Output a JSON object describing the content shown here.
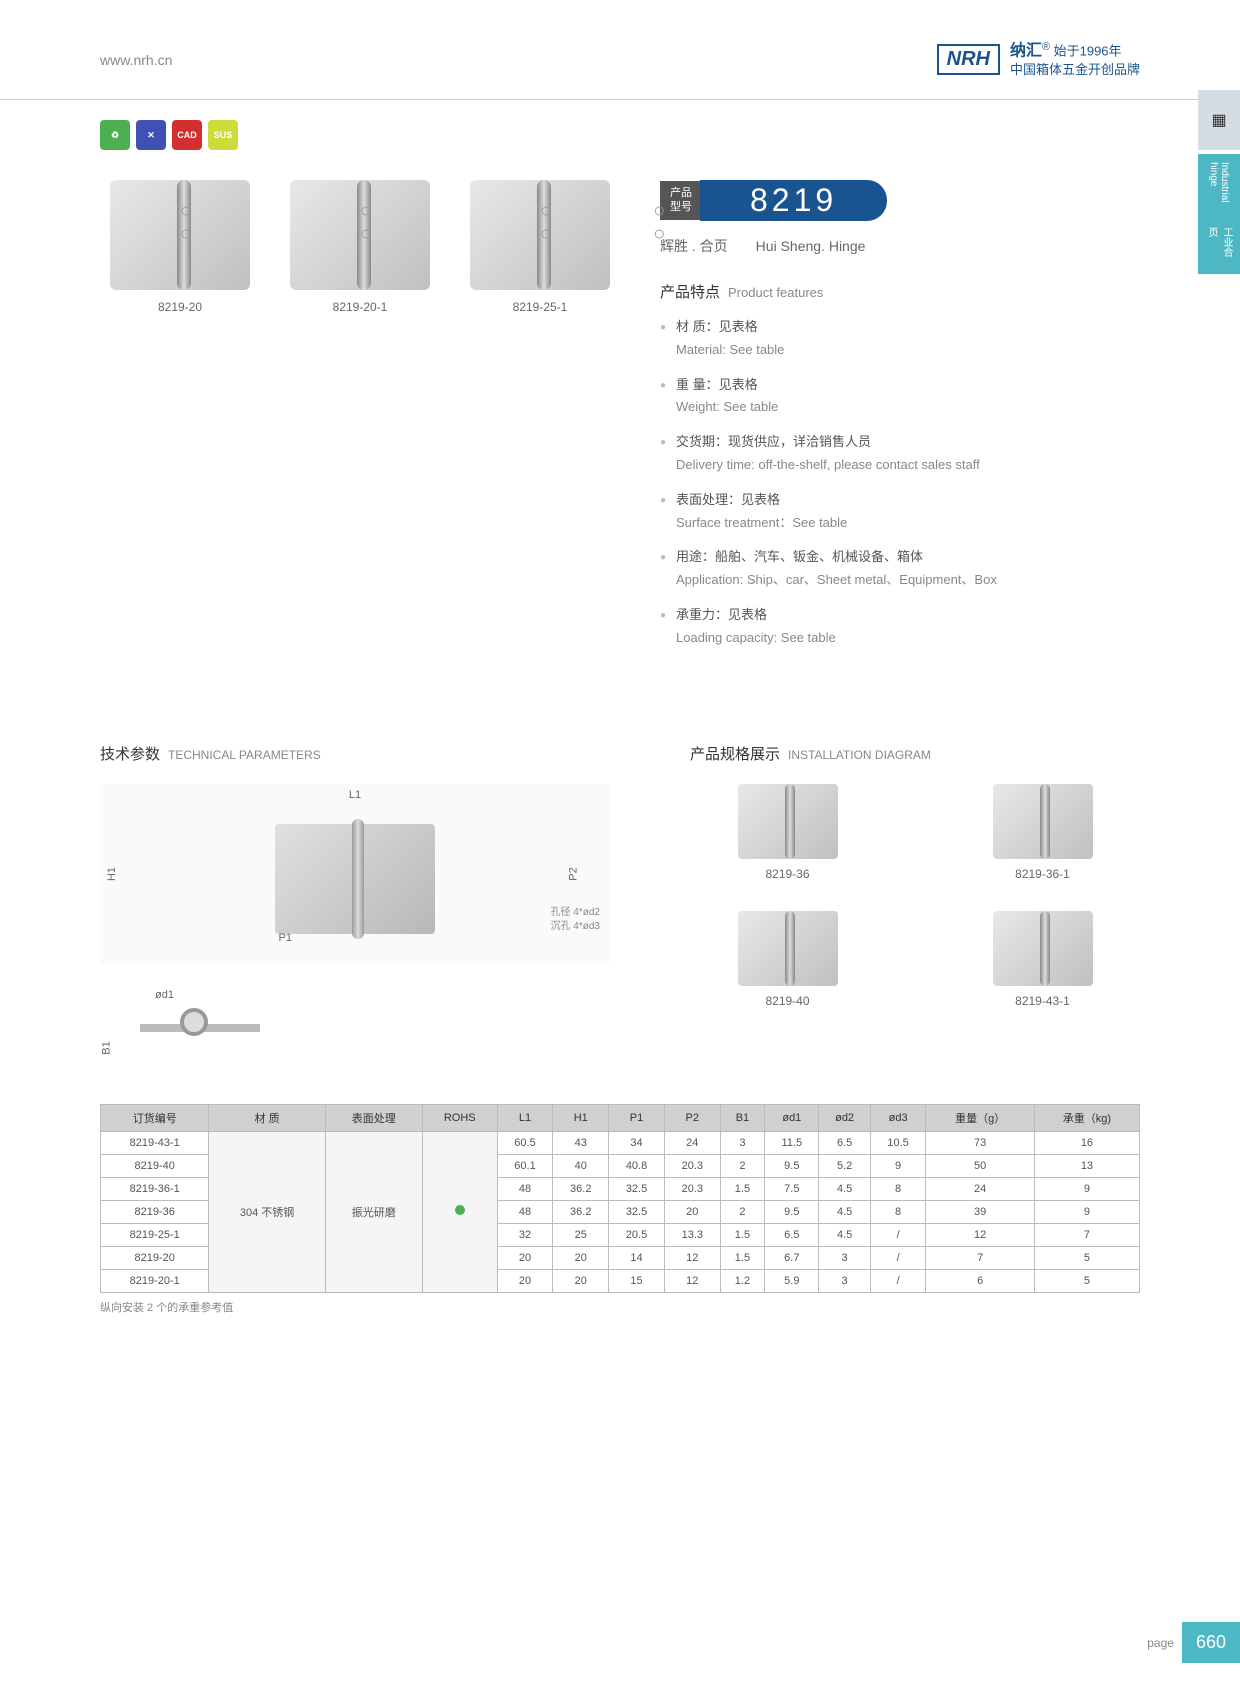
{
  "header": {
    "url": "www.nrh.cn",
    "logo": "NRH",
    "brand_cn": "纳汇",
    "since": "始于1996年",
    "tagline": "中国箱体五金开创品牌"
  },
  "side_tab": {
    "cn": "工业合页",
    "en": "Industrial hinge"
  },
  "badges": [
    "",
    "✕",
    "CAD",
    "SUS"
  ],
  "products": [
    {
      "label": "8219-20"
    },
    {
      "label": "8219-20-1"
    },
    {
      "label": "8219-25-1"
    }
  ],
  "model": {
    "tag1": "产品",
    "tag2": "型号",
    "number": "8219",
    "name_cn": "辉胜 . 合页",
    "name_en": "Hui Sheng. Hinge"
  },
  "features": {
    "title_cn": "产品特点",
    "title_en": "Product features",
    "items": [
      {
        "cn": "材 质：见表格",
        "en": "Material: See table"
      },
      {
        "cn": "重 量：见表格",
        "en": "Weight: See table"
      },
      {
        "cn": "交货期：现货供应，详洽销售人员",
        "en": "Delivery time: off-the-shelf, please contact sales staff"
      },
      {
        "cn": "表面处理：见表格",
        "en": "Surface treatment：See table"
      },
      {
        "cn": "用途：船舶、汽车、钣金、机械设备、箱体",
        "en": "Application: Ship、car、Sheet metal、Equipment、Box"
      },
      {
        "cn": "承重力：见表格",
        "en": "Loading capacity: See table"
      }
    ]
  },
  "tech": {
    "title_cn": "技术参数",
    "title_en": "TECHNICAL PARAMETERS",
    "dims": {
      "L1": "L1",
      "H1": "H1",
      "P1": "P1",
      "P2": "P2",
      "B1": "B1",
      "od1": "ød1",
      "note1": "孔径 4*ød2",
      "note2": "沉孔 4*ød3"
    }
  },
  "install": {
    "title_cn": "产品规格展示",
    "title_en": "INSTALLATION DIAGRAM",
    "items": [
      "8219-36",
      "8219-36-1",
      "8219-40",
      "8219-43-1"
    ]
  },
  "table": {
    "headers": [
      "订货编号",
      "材 质",
      "表面处理",
      "ROHS",
      "L1",
      "H1",
      "P1",
      "P2",
      "B1",
      "ød1",
      "ød2",
      "ød3",
      "重量（g）",
      "承重（kg)"
    ],
    "material": "304 不锈钢",
    "surface": "振光研磨",
    "rows": [
      [
        "8219-43-1",
        "60.5",
        "43",
        "34",
        "24",
        "3",
        "11.5",
        "6.5",
        "10.5",
        "73",
        "16"
      ],
      [
        "8219-40",
        "60.1",
        "40",
        "40.8",
        "20.3",
        "2",
        "9.5",
        "5.2",
        "9",
        "50",
        "13"
      ],
      [
        "8219-36-1",
        "48",
        "36.2",
        "32.5",
        "20.3",
        "1.5",
        "7.5",
        "4.5",
        "8",
        "24",
        "9"
      ],
      [
        "8219-36",
        "48",
        "36.2",
        "32.5",
        "20",
        "2",
        "9.5",
        "4.5",
        "8",
        "39",
        "9"
      ],
      [
        "8219-25-1",
        "32",
        "25",
        "20.5",
        "13.3",
        "1.5",
        "6.5",
        "4.5",
        "/",
        "12",
        "7"
      ],
      [
        "8219-20",
        "20",
        "20",
        "14",
        "12",
        "1.5",
        "6.7",
        "3",
        "/",
        "7",
        "5"
      ],
      [
        "8219-20-1",
        "20",
        "20",
        "15",
        "12",
        "1.2",
        "5.9",
        "3",
        "/",
        "6",
        "5"
      ]
    ],
    "note": "纵向安装 2 个的承重参考值"
  },
  "page": {
    "label": "page",
    "number": "660"
  }
}
